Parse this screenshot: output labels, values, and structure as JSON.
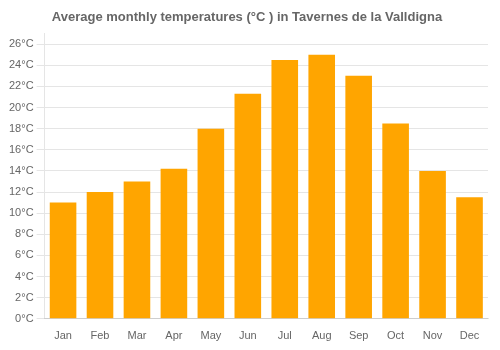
{
  "chart_data": {
    "type": "bar",
    "title": "Average monthly temperatures (°C ) in Tavernes de la Valldigna",
    "categories": [
      "Jan",
      "Feb",
      "Mar",
      "Apr",
      "May",
      "Jun",
      "Jul",
      "Aug",
      "Sep",
      "Oct",
      "Nov",
      "Dec"
    ],
    "values": [
      11.0,
      12.0,
      13.0,
      14.2,
      18.0,
      21.3,
      24.5,
      25.0,
      23.0,
      18.5,
      14.0,
      11.5
    ],
    "color": "#FFA500",
    "ylim": [
      0,
      27
    ],
    "yticks": [
      {
        "value": 0,
        "label": "0°C"
      },
      {
        "value": 2,
        "label": "2°C"
      },
      {
        "value": 4,
        "label": "4°C"
      },
      {
        "value": 6,
        "label": "6°C"
      },
      {
        "value": 8,
        "label": "8°C"
      },
      {
        "value": 10,
        "label": "10°C"
      },
      {
        "value": 12,
        "label": "12°C"
      },
      {
        "value": 14,
        "label": "14°C"
      },
      {
        "value": 16,
        "label": "16°C"
      },
      {
        "value": 18,
        "label": "18°C"
      },
      {
        "value": 20,
        "label": "20°C"
      },
      {
        "value": 22,
        "label": "22°C"
      },
      {
        "value": 24,
        "label": "24°C"
      },
      {
        "value": 26,
        "label": "26°C"
      }
    ],
    "grid": true
  }
}
